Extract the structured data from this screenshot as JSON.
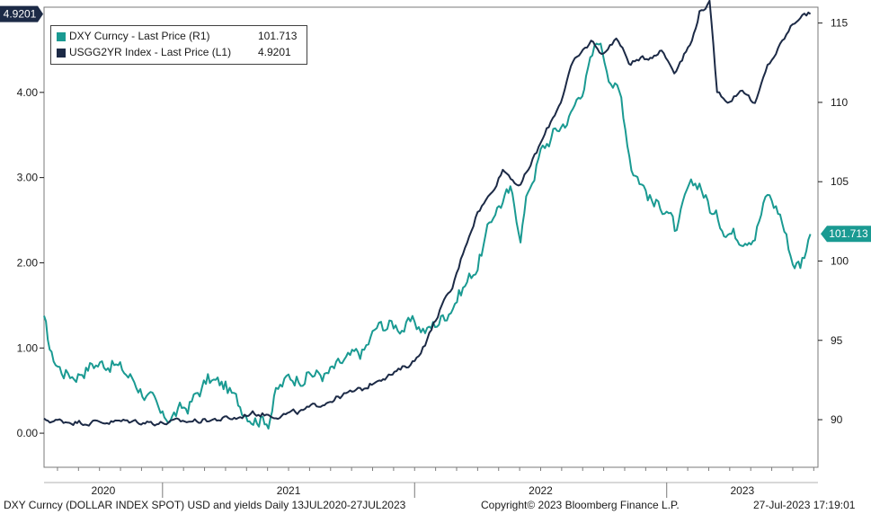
{
  "chart_data": {
    "type": "line",
    "title": "DXY Curncy (DOLLAR INDEX SPOT) USD and yields",
    "frequency": "Daily 13JUL2020-27JUL2023",
    "x_tick_labels": [
      "2020",
      "2021",
      "2022",
      "2023"
    ],
    "left_axis": {
      "ylim": [
        -0.4,
        5.0
      ],
      "ticks": [
        0.0,
        1.0,
        2.0,
        3.0,
        4.0
      ],
      "tick_labels": [
        "0.00",
        "1.00",
        "2.00",
        "3.00",
        "4.00"
      ]
    },
    "right_axis": {
      "ylim": [
        87.0,
        116.0
      ],
      "ticks": [
        90,
        95,
        100,
        105,
        110,
        115
      ],
      "tick_labels": [
        "90",
        "95",
        "100",
        "105",
        "110",
        "115"
      ]
    },
    "series": [
      {
        "name": "DXY Curncy - Last Price (R1)",
        "axis": "right",
        "color": "#1a9a92",
        "last_value": "101.713",
        "points": [
          [
            2020.53,
            96.2
          ],
          [
            2020.56,
            94.0
          ],
          [
            2020.6,
            93.1
          ],
          [
            2020.65,
            92.8
          ],
          [
            2020.72,
            93.5
          ],
          [
            2020.8,
            93.6
          ],
          [
            2020.88,
            92.6
          ],
          [
            2020.96,
            91.1
          ],
          [
            2021.0,
            90.0
          ],
          [
            2021.03,
            90.2
          ],
          [
            2021.1,
            90.8
          ],
          [
            2021.18,
            92.5
          ],
          [
            2021.25,
            92.1
          ],
          [
            2021.3,
            91.0
          ],
          [
            2021.36,
            90.2
          ],
          [
            2021.42,
            90.0
          ],
          [
            2021.45,
            91.7
          ],
          [
            2021.5,
            92.6
          ],
          [
            2021.58,
            92.9
          ],
          [
            2021.65,
            92.8
          ],
          [
            2021.72,
            93.6
          ],
          [
            2021.8,
            94.3
          ],
          [
            2021.85,
            95.8
          ],
          [
            2021.9,
            96.0
          ],
          [
            2021.95,
            95.9
          ],
          [
            2022.0,
            96.0
          ],
          [
            2022.05,
            95.6
          ],
          [
            2022.12,
            96.6
          ],
          [
            2022.2,
            98.5
          ],
          [
            2022.25,
            99.8
          ],
          [
            2022.32,
            103.3
          ],
          [
            2022.38,
            104.3
          ],
          [
            2022.42,
            101.8
          ],
          [
            2022.45,
            104.4
          ],
          [
            2022.5,
            106.8
          ],
          [
            2022.55,
            108.0
          ],
          [
            2022.62,
            109.2
          ],
          [
            2022.68,
            111.6
          ],
          [
            2022.73,
            114.0
          ],
          [
            2022.77,
            112.0
          ],
          [
            2022.82,
            110.2
          ],
          [
            2022.86,
            106.1
          ],
          [
            2022.9,
            105.0
          ],
          [
            2022.95,
            103.5
          ],
          [
            2023.0,
            103.5
          ],
          [
            2023.04,
            101.6
          ],
          [
            2023.08,
            104.2
          ],
          [
            2023.13,
            105.0
          ],
          [
            2023.18,
            103.0
          ],
          [
            2023.22,
            102.3
          ],
          [
            2023.28,
            101.6
          ],
          [
            2023.35,
            101.8
          ],
          [
            2023.4,
            104.2
          ],
          [
            2023.45,
            103.0
          ],
          [
            2023.5,
            100.0
          ],
          [
            2023.53,
            99.8
          ],
          [
            2023.57,
            101.7
          ]
        ]
      },
      {
        "name": "USGG2YR Index - Last Price (L1)",
        "axis": "left",
        "color": "#1c2a46",
        "last_value": "4.9201",
        "points": [
          [
            2020.53,
            0.15
          ],
          [
            2020.7,
            0.13
          ],
          [
            2020.9,
            0.14
          ],
          [
            2021.0,
            0.12
          ],
          [
            2021.2,
            0.16
          ],
          [
            2021.3,
            0.18
          ],
          [
            2021.35,
            0.24
          ],
          [
            2021.45,
            0.21
          ],
          [
            2021.55,
            0.25
          ],
          [
            2021.65,
            0.37
          ],
          [
            2021.72,
            0.45
          ],
          [
            2021.8,
            0.52
          ],
          [
            2021.86,
            0.65
          ],
          [
            2021.92,
            0.7
          ],
          [
            2022.0,
            0.85
          ],
          [
            2022.05,
            1.1
          ],
          [
            2022.1,
            1.45
          ],
          [
            2022.15,
            1.7
          ],
          [
            2022.2,
            2.2
          ],
          [
            2022.25,
            2.6
          ],
          [
            2022.3,
            2.8
          ],
          [
            2022.35,
            3.1
          ],
          [
            2022.42,
            2.9
          ],
          [
            2022.5,
            3.4
          ],
          [
            2022.58,
            3.9
          ],
          [
            2022.62,
            4.3
          ],
          [
            2022.7,
            4.6
          ],
          [
            2022.75,
            4.45
          ],
          [
            2022.8,
            4.65
          ],
          [
            2022.85,
            4.35
          ],
          [
            2022.92,
            4.4
          ],
          [
            2022.98,
            4.5
          ],
          [
            2023.03,
            4.25
          ],
          [
            2023.1,
            4.6
          ],
          [
            2023.13,
            4.95
          ],
          [
            2023.17,
            5.05
          ],
          [
            2023.2,
            4.0
          ],
          [
            2023.25,
            3.9
          ],
          [
            2023.3,
            4.05
          ],
          [
            2023.35,
            3.85
          ],
          [
            2023.4,
            4.3
          ],
          [
            2023.45,
            4.55
          ],
          [
            2023.5,
            4.8
          ],
          [
            2023.53,
            4.9
          ],
          [
            2023.57,
            4.92
          ]
        ]
      }
    ]
  },
  "footer": {
    "left": "DXY Curncy (DOLLAR INDEX SPOT) USD and yields  Daily 13JUL2020-27JUL2023",
    "center": "Copyright© 2023 Bloomberg Finance L.P.",
    "right": "27-Jul-2023 17:19:01"
  }
}
